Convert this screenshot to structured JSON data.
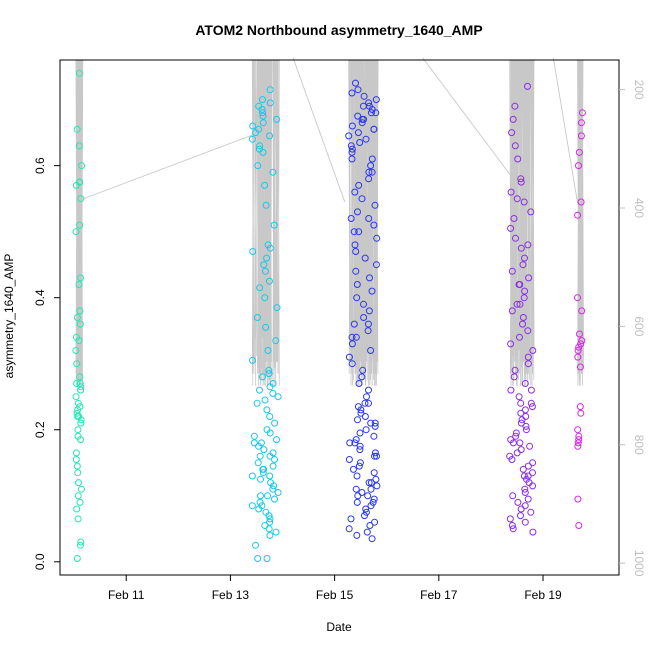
{
  "chart_data": {
    "type": "scatter",
    "title": "ATOM2 Northbound asymmetry_1640_AMP",
    "xlabel": "Date",
    "ylabel": "asymmetry_1640_AMP",
    "xlim": [
      "2025-02-09T17:30",
      "2025-02-20T11:00"
    ],
    "ylim": [
      -0.02,
      0.76
    ],
    "y2lim": [
      1020,
      150
    ],
    "x_ticks": [
      {
        "date": "2025-02-11",
        "label": "Feb 11"
      },
      {
        "date": "2025-02-13",
        "label": "Feb 13"
      },
      {
        "date": "2025-02-15",
        "label": "Feb 15"
      },
      {
        "date": "2025-02-17",
        "label": "Feb 17"
      },
      {
        "date": "2025-02-19",
        "label": "Feb 19"
      }
    ],
    "y_ticks": [
      0.0,
      0.2,
      0.4,
      0.6
    ],
    "y_tick_labels": [
      "0.0",
      "0.2",
      "0.4",
      "0.6"
    ],
    "y2_ticks": [
      200,
      400,
      600,
      800,
      1000
    ],
    "y2_tick_labels": [
      "200",
      "400",
      "600",
      "800",
      "1000"
    ],
    "grid": false,
    "legend": "none",
    "colors": {
      "depth_line": "#c8c8c8",
      "axis": "#000000",
      "right_axis": "#bfbfbf",
      "series": [
        "#22e8b4",
        "#18c8ea",
        "#2a38ee",
        "#8a2ee6",
        "#d628e6"
      ]
    },
    "series": [
      {
        "center": "2025-02-10T02:00",
        "width_days": 0.12,
        "color": "#22e8b4",
        "values": [
          0.74,
          0.655,
          0.63,
          0.6,
          0.575,
          0.575,
          0.57,
          0.55,
          0.51,
          0.43,
          0.38,
          0.37,
          0.36,
          0.34,
          0.335,
          0.3,
          0.27,
          0.27,
          0.265,
          0.26,
          0.25,
          0.24,
          0.235,
          0.23,
          0.225,
          0.22,
          0.215,
          0.21,
          0.2,
          0.19,
          0.185,
          0.165,
          0.155,
          0.145,
          0.135,
          0.12,
          0.11,
          0.1,
          0.09,
          0.08,
          0.065,
          0.03,
          0.025,
          0.005,
          0.22,
          0.26,
          0.28,
          0.5,
          0.42,
          0.32
        ]
      },
      {
        "center": "2025-02-13T16:00",
        "width_days": 0.5,
        "color": "#18c8ea",
        "values": [
          0.715,
          0.7,
          0.695,
          0.69,
          0.685,
          0.68,
          0.675,
          0.67,
          0.665,
          0.66,
          0.655,
          0.65,
          0.645,
          0.64,
          0.63,
          0.625,
          0.62,
          0.6,
          0.59,
          0.57,
          0.54,
          0.51,
          0.48,
          0.475,
          0.47,
          0.46,
          0.45,
          0.44,
          0.425,
          0.415,
          0.4,
          0.385,
          0.37,
          0.355,
          0.335,
          0.32,
          0.305,
          0.29,
          0.285,
          0.28,
          0.27,
          0.265,
          0.26,
          0.255,
          0.25,
          0.245,
          0.24,
          0.23,
          0.22,
          0.21,
          0.2,
          0.195,
          0.19,
          0.185,
          0.18,
          0.175,
          0.17,
          0.165,
          0.16,
          0.155,
          0.15,
          0.145,
          0.14,
          0.135,
          0.13,
          0.125,
          0.12,
          0.115,
          0.11,
          0.105,
          0.1,
          0.095,
          0.09,
          0.085,
          0.08,
          0.075,
          0.07,
          0.065,
          0.06,
          0.055,
          0.05,
          0.045,
          0.04,
          0.025,
          0.005,
          0.005,
          0.13,
          0.14,
          0.1,
          0.16,
          0.18,
          0.085
        ]
      },
      {
        "center": "2025-02-15T13:00",
        "width_days": 0.55,
        "color": "#2a38ee",
        "values": [
          0.725,
          0.715,
          0.71,
          0.705,
          0.7,
          0.695,
          0.69,
          0.685,
          0.68,
          0.675,
          0.67,
          0.665,
          0.66,
          0.655,
          0.65,
          0.645,
          0.64,
          0.635,
          0.63,
          0.625,
          0.62,
          0.61,
          0.6,
          0.59,
          0.58,
          0.57,
          0.56,
          0.55,
          0.54,
          0.53,
          0.52,
          0.51,
          0.5,
          0.49,
          0.48,
          0.47,
          0.46,
          0.45,
          0.44,
          0.43,
          0.42,
          0.41,
          0.4,
          0.39,
          0.38,
          0.37,
          0.36,
          0.35,
          0.34,
          0.33,
          0.32,
          0.31,
          0.3,
          0.29,
          0.28,
          0.27,
          0.26,
          0.25,
          0.24,
          0.235,
          0.23,
          0.225,
          0.22,
          0.215,
          0.21,
          0.205,
          0.2,
          0.195,
          0.19,
          0.185,
          0.18,
          0.175,
          0.17,
          0.165,
          0.16,
          0.155,
          0.15,
          0.145,
          0.14,
          0.135,
          0.13,
          0.125,
          0.12,
          0.115,
          0.11,
          0.105,
          0.1,
          0.095,
          0.09,
          0.085,
          0.08,
          0.075,
          0.07,
          0.065,
          0.06,
          0.055,
          0.05,
          0.045,
          0.04,
          0.035,
          0.69,
          0.68,
          0.67,
          0.655,
          0.36,
          0.34,
          0.18,
          0.16,
          0.12,
          0.11,
          0.1,
          0.09,
          0.21,
          0.24,
          0.52,
          0.5,
          0.61,
          0.59
        ]
      },
      {
        "center": "2025-02-18T14:00",
        "width_days": 0.45,
        "color": "#8a2ee6",
        "values": [
          0.72,
          0.69,
          0.67,
          0.65,
          0.63,
          0.61,
          0.58,
          0.575,
          0.56,
          0.55,
          0.545,
          0.53,
          0.52,
          0.505,
          0.49,
          0.48,
          0.475,
          0.46,
          0.45,
          0.44,
          0.43,
          0.42,
          0.41,
          0.4,
          0.39,
          0.38,
          0.37,
          0.36,
          0.35,
          0.34,
          0.33,
          0.32,
          0.31,
          0.3,
          0.29,
          0.28,
          0.27,
          0.26,
          0.25,
          0.24,
          0.235,
          0.23,
          0.225,
          0.22,
          0.215,
          0.21,
          0.205,
          0.2,
          0.195,
          0.19,
          0.185,
          0.18,
          0.175,
          0.17,
          0.165,
          0.16,
          0.155,
          0.15,
          0.145,
          0.14,
          0.135,
          0.13,
          0.125,
          0.12,
          0.115,
          0.11,
          0.105,
          0.1,
          0.095,
          0.09,
          0.085,
          0.08,
          0.075,
          0.07,
          0.065,
          0.06,
          0.055,
          0.05,
          0.045,
          0.42,
          0.39,
          0.26,
          0.24,
          0.18,
          0.13
        ]
      },
      {
        "center": "2025-02-19T17:00",
        "width_days": 0.1,
        "color": "#d628e6",
        "values": [
          0.68,
          0.665,
          0.645,
          0.62,
          0.6,
          0.545,
          0.525,
          0.4,
          0.38,
          0.345,
          0.335,
          0.33,
          0.325,
          0.32,
          0.31,
          0.295,
          0.235,
          0.225,
          0.2,
          0.19,
          0.185,
          0.175,
          0.18,
          0.095,
          0.055
        ]
      }
    ]
  }
}
